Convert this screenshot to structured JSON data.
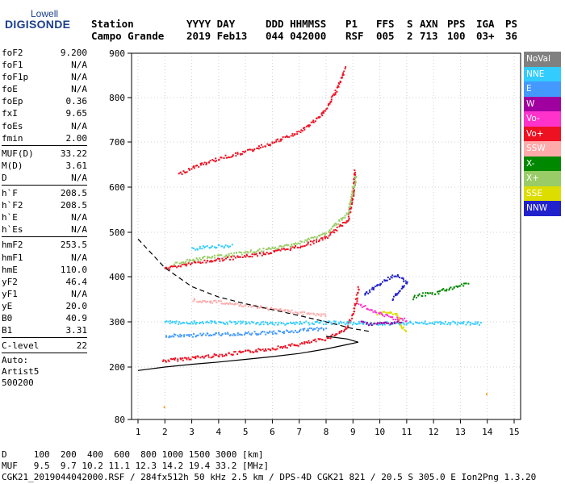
{
  "logo": {
    "line1": "Lowell",
    "line2": "DIGISONDE"
  },
  "header": {
    "c1": {
      "h": "Station",
      "v": "Campo Grande"
    },
    "c2": {
      "h": "YYYY DAY",
      "v": "2019 Feb13"
    },
    "c3": {
      "h": "DDD HHMMSS",
      "v": "044 042000"
    },
    "c4": {
      "h": "P1",
      "v": "RSF"
    },
    "c5": {
      "h": "FFS",
      "v": "005"
    },
    "c6": {
      "h": "S",
      "v": "2"
    },
    "c7": {
      "h": "AXN",
      "v": "713"
    },
    "c8": {
      "h": "PPS",
      "v": "100"
    },
    "c9": {
      "h": "IGA",
      "v": "03+"
    },
    "c10": {
      "h": "PS",
      "v": "36"
    }
  },
  "params": {
    "g1": [
      {
        "k": "foF2",
        "v": "9.200"
      },
      {
        "k": "foF1",
        "v": "N/A"
      },
      {
        "k": "foF1p",
        "v": "N/A"
      },
      {
        "k": "foE",
        "v": "N/A"
      },
      {
        "k": "foEp",
        "v": "0.36"
      },
      {
        "k": "fxI",
        "v": "9.65"
      },
      {
        "k": "foEs",
        "v": "N/A"
      },
      {
        "k": "fmin",
        "v": "2.00"
      }
    ],
    "g2": [
      {
        "k": "MUF(D)",
        "v": "33.22"
      },
      {
        "k": "M(D)",
        "v": "3.61"
      },
      {
        "k": "D",
        "v": "N/A"
      }
    ],
    "g3": [
      {
        "k": "h`F",
        "v": "208.5"
      },
      {
        "k": "h`F2",
        "v": "208.5"
      },
      {
        "k": "h`E",
        "v": "N/A"
      },
      {
        "k": "h`Es",
        "v": "N/A"
      }
    ],
    "g4": [
      {
        "k": "hmF2",
        "v": "253.5"
      },
      {
        "k": "hmF1",
        "v": "N/A"
      },
      {
        "k": "hmE",
        "v": "110.0"
      },
      {
        "k": "yF2",
        "v": "46.4"
      },
      {
        "k": "yF1",
        "v": "N/A"
      },
      {
        "k": "yE",
        "v": "20.0"
      },
      {
        "k": "B0",
        "v": "40.9"
      },
      {
        "k": "B1",
        "v": "3.31"
      }
    ],
    "g5": [
      {
        "k": "C-level",
        "v": "22"
      }
    ],
    "auto": {
      "l1": "Auto:",
      "l2": "Artist5",
      "l3": "500200"
    }
  },
  "footer": {
    "d_row": "D     100  200  400  600  800 1000 1500 3000 [km]",
    "muf_row": "MUF   9.5  9.7 10.2 11.1 12.3 14.2 19.4 33.2 [MHz]",
    "info_row": "CGK21_2019044042000.RSF / 284fx512h 50 kHz 2.5 km / DPS-4D CGK21 821 / 20.5 S 305.0 E Ion2Png 1.3.20"
  },
  "legend": [
    {
      "label": "NoVal",
      "bg": "#808080",
      "fg": "#ffffff"
    },
    {
      "label": "NNE",
      "bg": "#33ccff",
      "fg": "#ffffff"
    },
    {
      "label": "E",
      "bg": "#4499ff",
      "fg": "#ffffff"
    },
    {
      "label": "W",
      "bg": "#a000a0",
      "fg": "#ffffff"
    },
    {
      "label": "Vo-",
      "bg": "#ff33cc",
      "fg": "#ffffff"
    },
    {
      "label": "Vo+",
      "bg": "#ee1122",
      "fg": "#ffffff"
    },
    {
      "label": "SSW",
      "bg": "#ffaaaa",
      "fg": "#ffffff"
    },
    {
      "label": "X-",
      "bg": "#008800",
      "fg": "#ffffff"
    },
    {
      "label": "X+",
      "bg": "#99cc66",
      "fg": "#ffffff"
    },
    {
      "label": "SSE",
      "bg": "#dddd00",
      "fg": "#ffffff"
    },
    {
      "label": "NNW",
      "bg": "#2222cc",
      "fg": "#ffffff"
    }
  ],
  "chart_data": {
    "type": "scatter",
    "x_ticks": [
      "1",
      "2",
      "3",
      "4",
      "5",
      "6",
      "7",
      "8",
      "9",
      "10",
      "11",
      "12",
      "13",
      "14",
      "15"
    ],
    "y_ticks": [
      "80",
      "200",
      "300",
      "400",
      "500",
      "600",
      "700",
      "800",
      "900"
    ],
    "xlim": [
      1,
      15
    ],
    "y_tick_values": [
      80,
      200,
      300,
      400,
      500,
      600,
      700,
      800,
      900
    ],
    "grid": true,
    "traces": [
      {
        "name": "Vo+",
        "color": "#ee1122",
        "points": [
          [
            1.9,
            215
          ],
          [
            3,
            222
          ],
          [
            4,
            228
          ],
          [
            5,
            235
          ],
          [
            6,
            243
          ],
          [
            7,
            252
          ],
          [
            8,
            265
          ],
          [
            8.7,
            285
          ],
          [
            9.0,
            320
          ],
          [
            9.2,
            380
          ]
        ]
      },
      {
        "name": "Vo+",
        "color": "#ee1122",
        "points": [
          [
            2.0,
            420
          ],
          [
            3,
            432
          ],
          [
            4,
            440
          ],
          [
            5,
            448
          ],
          [
            6,
            457
          ],
          [
            7,
            470
          ],
          [
            8,
            490
          ],
          [
            8.8,
            530
          ],
          [
            9.0,
            590
          ],
          [
            9.05,
            640
          ]
        ]
      },
      {
        "name": "Vo+",
        "color": "#ee1122",
        "points": [
          [
            2.5,
            630
          ],
          [
            3,
            645
          ],
          [
            4,
            665
          ],
          [
            5,
            680
          ],
          [
            6,
            700
          ],
          [
            7,
            725
          ],
          [
            7.8,
            760
          ],
          [
            8.3,
            810
          ],
          [
            8.7,
            870
          ]
        ]
      },
      {
        "name": "X+",
        "color": "#99cc66",
        "points": [
          [
            2.3,
            430
          ],
          [
            3,
            440
          ],
          [
            4,
            448
          ],
          [
            5,
            456
          ],
          [
            6,
            465
          ],
          [
            7,
            478
          ],
          [
            8,
            500
          ],
          [
            8.8,
            545
          ],
          [
            9.1,
            630
          ]
        ]
      },
      {
        "name": "E",
        "color": "#4499ff",
        "points": [
          [
            2,
            270
          ],
          [
            3,
            272
          ],
          [
            4,
            274
          ],
          [
            5,
            276
          ],
          [
            6,
            278
          ],
          [
            7,
            282
          ],
          [
            8,
            288
          ]
        ]
      },
      {
        "name": "NNE",
        "color": "#33ccff",
        "points": [
          [
            2,
            300
          ],
          [
            4,
            300
          ],
          [
            6,
            298
          ],
          [
            8,
            300
          ],
          [
            10,
            298
          ],
          [
            12,
            300
          ],
          [
            13.8,
            298
          ]
        ]
      },
      {
        "name": "NNE",
        "color": "#33ccff",
        "points": [
          [
            3,
            465
          ],
          [
            3.5,
            468
          ],
          [
            4,
            470
          ],
          [
            4.5,
            472
          ]
        ]
      },
      {
        "name": "NNW",
        "color": "#2222cc",
        "points": [
          [
            9.4,
            360
          ],
          [
            9.8,
            380
          ],
          [
            10.2,
            395
          ],
          [
            10.6,
            405
          ],
          [
            11,
            390
          ],
          [
            10.4,
            350
          ]
        ]
      },
      {
        "name": "X-",
        "color": "#008800",
        "points": [
          [
            11.2,
            355
          ],
          [
            11.6,
            362
          ],
          [
            12,
            365
          ],
          [
            12.4,
            372
          ],
          [
            12.8,
            380
          ],
          [
            13.3,
            385
          ]
        ]
      },
      {
        "name": "SSE",
        "color": "#dddd00",
        "points": [
          [
            9.9,
            320
          ],
          [
            10.3,
            325
          ],
          [
            10.6,
            318
          ],
          [
            10.8,
            290
          ],
          [
            11,
            280
          ]
        ]
      },
      {
        "name": "W",
        "color": "#a000a0",
        "points": [
          [
            9.3,
            300
          ],
          [
            9.6,
            295
          ],
          [
            10,
            298
          ],
          [
            10.5,
            300
          ],
          [
            10.8,
            302
          ]
        ]
      },
      {
        "name": "Vo-",
        "color": "#ff33cc",
        "points": [
          [
            9.2,
            340
          ],
          [
            9.6,
            330
          ],
          [
            10,
            320
          ],
          [
            10.5,
            310
          ],
          [
            11,
            305
          ]
        ]
      },
      {
        "name": "SSW",
        "color": "#ffaaaa",
        "points": [
          [
            3,
            350
          ],
          [
            4,
            345
          ],
          [
            5,
            338
          ],
          [
            6,
            330
          ],
          [
            7,
            322
          ],
          [
            8,
            315
          ]
        ]
      }
    ],
    "profile_solid": [
      [
        1,
        192
      ],
      [
        2,
        200
      ],
      [
        3,
        206
      ],
      [
        4,
        211
      ],
      [
        5,
        217
      ],
      [
        6,
        223
      ],
      [
        7,
        230
      ],
      [
        8,
        240
      ],
      [
        8.8,
        250
      ],
      [
        9.2,
        255
      ],
      [
        8.8,
        262
      ],
      [
        8,
        268
      ]
    ],
    "profile_dashed": [
      [
        1,
        485
      ],
      [
        2,
        420
      ],
      [
        3,
        378
      ],
      [
        4,
        355
      ],
      [
        5,
        340
      ],
      [
        6,
        327
      ],
      [
        7,
        314
      ],
      [
        8,
        300
      ],
      [
        9,
        285
      ],
      [
        9.7,
        278
      ]
    ],
    "extra_points": [
      [
        13.95,
        140
      ],
      [
        1.95,
        110
      ]
    ]
  }
}
